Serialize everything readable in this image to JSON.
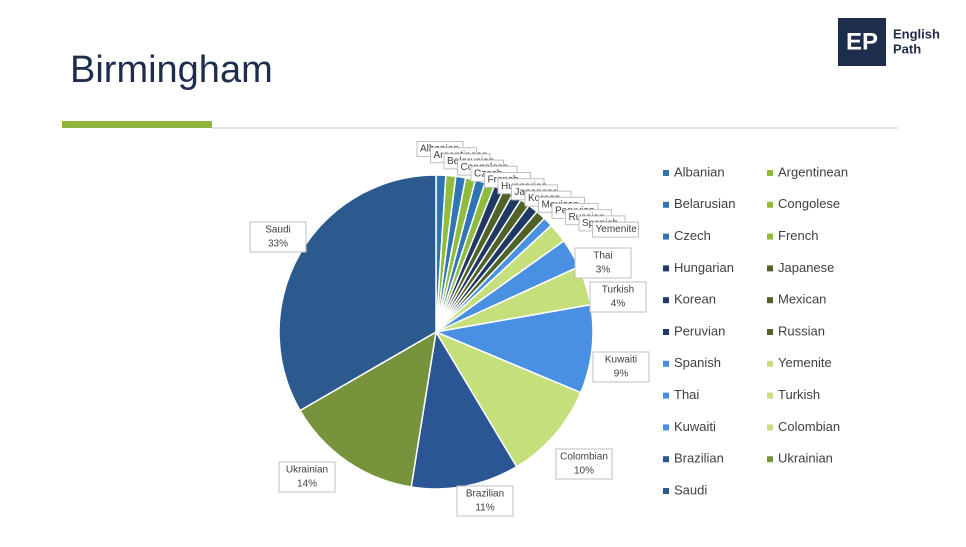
{
  "header": {
    "title": "Birmingham",
    "logo_mark": "EP",
    "logo_line1": "English",
    "logo_line2": "Path"
  },
  "chart_data": {
    "type": "pie",
    "categories": [
      "Albanian",
      "Argentinean",
      "Belarusian",
      "Congolese",
      "Czech",
      "French",
      "Hungarian",
      "Japanese",
      "Korean",
      "Mexican",
      "Peruvian",
      "Russian",
      "Spanish",
      "Yemenite",
      "Thai",
      "Turkish",
      "Kuwaiti",
      "Colombian",
      "Brazilian",
      "Ukrainian",
      "Saudi"
    ],
    "values": [
      1,
      1,
      1,
      1,
      1,
      1,
      1,
      1,
      1,
      1,
      1,
      1,
      1,
      2,
      3,
      4,
      9,
      10,
      11,
      14,
      33
    ],
    "value_labels": [
      null,
      null,
      null,
      null,
      null,
      null,
      null,
      null,
      null,
      null,
      null,
      null,
      null,
      null,
      "3%",
      "4%",
      "9%",
      "10%",
      "11%",
      "14%",
      "33%"
    ],
    "colors": [
      "#2e75b6",
      "#8fbc3f",
      "#2e75b6",
      "#8fbc3f",
      "#2e75b6",
      "#8fbc3f",
      "#1f3864",
      "#4f6228",
      "#1f3864",
      "#4f6228",
      "#1f3864",
      "#4f6228",
      "#4a90e2",
      "#c5e07a",
      "#4a90e2",
      "#c5e07a",
      "#4a90e2",
      "#c5e07a",
      "#2a5693",
      "#77933c",
      "#2c5a8f"
    ],
    "legend": "right"
  }
}
